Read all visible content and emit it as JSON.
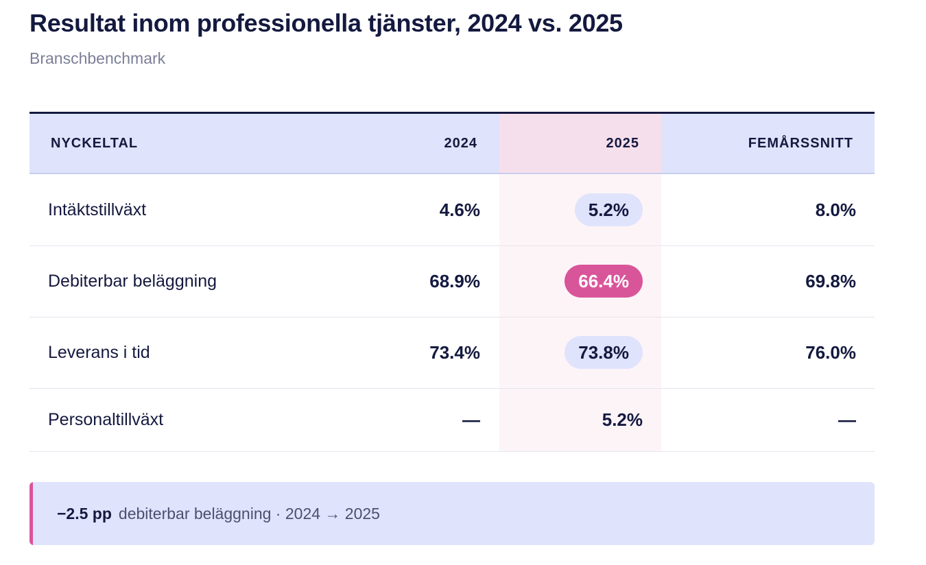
{
  "title": "Resultat inom professionella tjänster, 2024 vs. 2025",
  "subtitle": "Branschbenchmark",
  "colors": {
    "ink": "#14193f",
    "header_bg": "#dfe3fb",
    "highlight_col": "#fdf4f7",
    "highlight_head": "#f6dfec",
    "negative": "#d9559a"
  },
  "chart_data": {
    "type": "table",
    "title": "Resultat inom professionella tjänster, 2024 vs. 2025",
    "subtitle": "Branschbenchmark",
    "columns": [
      "NYCKELTAL",
      "2024",
      "2025",
      "FEMÅRSSNITT"
    ],
    "highlighted_column": "2025",
    "rows": [
      {
        "metric": "Intäktstillväxt",
        "y2024": "4.6%",
        "y2025": "5.2%",
        "avg5": "8.0%",
        "status2025": "neutral"
      },
      {
        "metric": "Debiterbar beläggning",
        "y2024": "68.9%",
        "y2025": "66.4%",
        "avg5": "69.8%",
        "status2025": "negative"
      },
      {
        "metric": "Leverans i tid",
        "y2024": "73.4%",
        "y2025": "73.8%",
        "avg5": "76.0%",
        "status2025": "neutral"
      },
      {
        "metric": "Personaltillväxt",
        "y2024": "—",
        "y2025": "5.2%",
        "avg5": "—",
        "status2025": "plain"
      }
    ],
    "callout": {
      "value": "−2.5 pp",
      "text": "debiterbar beläggning · 2024 → 2025"
    }
  }
}
